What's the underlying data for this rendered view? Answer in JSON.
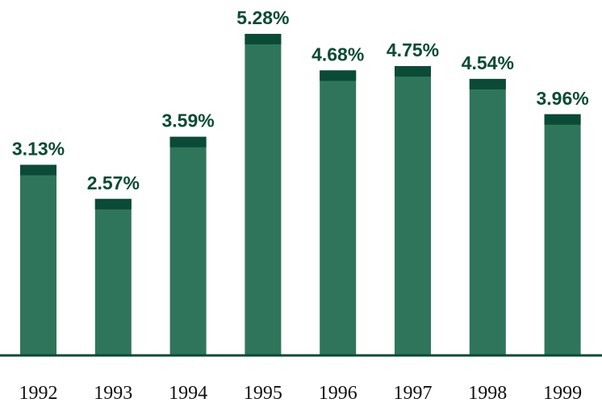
{
  "chart_data": {
    "type": "bar",
    "title": "",
    "xlabel": "",
    "ylabel": "",
    "categories": [
      "1992",
      "1993",
      "1994",
      "1995",
      "1996",
      "1997",
      "1998",
      "1999"
    ],
    "values": [
      3.13,
      2.57,
      3.59,
      5.28,
      4.68,
      4.75,
      4.54,
      3.96
    ],
    "data_labels": [
      "3.13%",
      "2.57%",
      "3.59%",
      "5.28%",
      "4.68%",
      "4.75%",
      "4.54%",
      "3.96%"
    ],
    "ylim": [
      0,
      5.28
    ],
    "grid": false,
    "legend": "none",
    "colors": {
      "bar": "#2f755c",
      "bar_cap": "#0b4a36",
      "label": "#0b4a36",
      "axis": "#0b4a36"
    }
  }
}
